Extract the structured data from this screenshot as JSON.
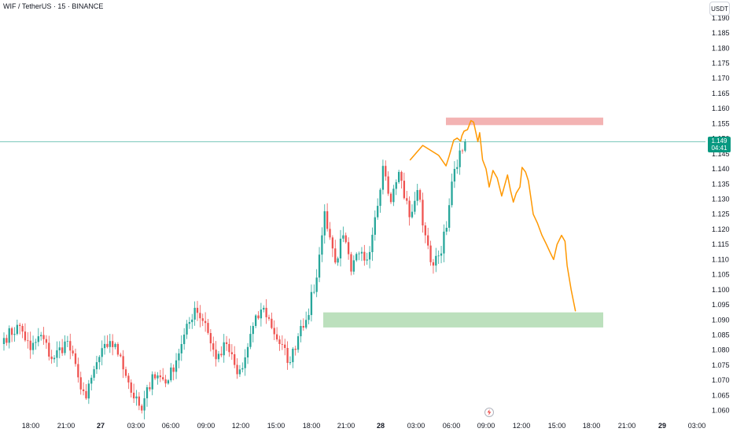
{
  "legend": {
    "symbol": "WIF / TetherUS · 15 · BINANCE"
  },
  "currency_button": {
    "label": "USDT"
  },
  "price_tag": {
    "price": "1.149",
    "countdown": "04:41"
  },
  "colors": {
    "up": "#26a69a",
    "down": "#ef5350",
    "resistance_zone": "#ef9a9a",
    "support_zone": "#a5d6a7",
    "projection": "#ff9800",
    "price_line": "#089981"
  },
  "icons": {
    "replay": "lightning-icon"
  },
  "chart_data": {
    "type": "candlestick",
    "title": "",
    "xlabel": "",
    "ylabel": "",
    "interval": "15",
    "ylim": [
      1.058,
      1.193
    ],
    "y_ticks": [
      "1.060",
      "1.065",
      "1.070",
      "1.075",
      "1.080",
      "1.085",
      "1.090",
      "1.095",
      "1.100",
      "1.105",
      "1.110",
      "1.115",
      "1.120",
      "1.125",
      "1.130",
      "1.135",
      "1.140",
      "1.145",
      "1.150",
      "1.155",
      "1.160",
      "1.165",
      "1.170",
      "1.175",
      "1.180",
      "1.185",
      "1.190"
    ],
    "x_ticks": [
      {
        "label": "18:00",
        "day": false
      },
      {
        "label": "21:00",
        "day": false
      },
      {
        "label": "27",
        "day": true
      },
      {
        "label": "03:00",
        "day": false
      },
      {
        "label": "06:00",
        "day": false
      },
      {
        "label": "09:00",
        "day": false
      },
      {
        "label": "12:00",
        "day": false
      },
      {
        "label": "15:00",
        "day": false
      },
      {
        "label": "18:00",
        "day": false
      },
      {
        "label": "21:00",
        "day": false
      },
      {
        "label": "28",
        "day": true
      },
      {
        "label": "03:00",
        "day": false
      },
      {
        "label": "06:00",
        "day": false
      },
      {
        "label": "09:00",
        "day": false
      },
      {
        "label": "12:00",
        "day": false
      },
      {
        "label": "15:00",
        "day": false
      },
      {
        "label": "18:00",
        "day": false
      },
      {
        "label": "21:00",
        "day": false
      },
      {
        "label": "29",
        "day": true
      },
      {
        "label": "03:00",
        "day": false
      }
    ],
    "candle_count": 150,
    "key_closes": [
      [
        0,
        1.084
      ],
      [
        6,
        1.088
      ],
      [
        10,
        1.08
      ],
      [
        14,
        1.085
      ],
      [
        18,
        1.077
      ],
      [
        24,
        1.083
      ],
      [
        28,
        1.071
      ],
      [
        31,
        1.064
      ],
      [
        35,
        1.076
      ],
      [
        40,
        1.083
      ],
      [
        44,
        1.078
      ],
      [
        49,
        1.064
      ],
      [
        52,
        1.06
      ],
      [
        56,
        1.072
      ],
      [
        62,
        1.07
      ],
      [
        67,
        1.082
      ],
      [
        72,
        1.094
      ],
      [
        76,
        1.089
      ],
      [
        80,
        1.077
      ],
      [
        84,
        1.082
      ],
      [
        88,
        1.072
      ],
      [
        90,
        1.074
      ],
      [
        94,
        1.088
      ],
      [
        98,
        1.094
      ],
      [
        104,
        1.082
      ],
      [
        108,
        1.076
      ],
      [
        112,
        1.088
      ],
      [
        114,
        1.09
      ],
      [
        118,
        1.104
      ],
      [
        120,
        1.118
      ],
      [
        121,
        1.126
      ],
      [
        125,
        1.109
      ],
      [
        128,
        1.118
      ],
      [
        131,
        1.106
      ],
      [
        134,
        1.112
      ],
      [
        137,
        1.11
      ],
      [
        140,
        1.124
      ],
      [
        143,
        1.141
      ],
      [
        146,
        1.129
      ],
      [
        149,
        1.139
      ],
      [
        153,
        1.124
      ],
      [
        156,
        1.133
      ],
      [
        159,
        1.118
      ],
      [
        162,
        1.108
      ],
      [
        165,
        1.112
      ],
      [
        168,
        1.128
      ],
      [
        170,
        1.14
      ],
      [
        173,
        1.146
      ],
      [
        174,
        1.149
      ]
    ],
    "last_price": 1.149,
    "zones": [
      {
        "name": "resistance",
        "y_low": 1.1545,
        "y_high": 1.157
      },
      {
        "name": "support",
        "y_low": 1.0875,
        "y_high": 1.0925
      }
    ],
    "projection_path": [
      [
        153.3,
        1.143
      ],
      [
        158.0,
        1.1478
      ],
      [
        164.0,
        1.1445
      ],
      [
        166.8,
        1.141
      ],
      [
        167.9,
        1.144
      ],
      [
        169.7,
        1.1495
      ],
      [
        171.0,
        1.1502
      ],
      [
        172.3,
        1.1492
      ],
      [
        172.8,
        1.151
      ],
      [
        173.6,
        1.1525
      ],
      [
        174.9,
        1.153
      ],
      [
        176.2,
        1.156
      ],
      [
        177.2,
        1.1555
      ],
      [
        178.8,
        1.149
      ],
      [
        179.5,
        1.152
      ],
      [
        180.6,
        1.143
      ],
      [
        181.9,
        1.14
      ],
      [
        183.1,
        1.134
      ],
      [
        184.5,
        1.1395
      ],
      [
        186.1,
        1.137
      ],
      [
        187.8,
        1.131
      ],
      [
        190.0,
        1.138
      ],
      [
        191.1,
        1.133
      ],
      [
        192.2,
        1.129
      ],
      [
        193.3,
        1.132
      ],
      [
        194.7,
        1.134
      ],
      [
        195.5,
        1.1405
      ],
      [
        196.8,
        1.139
      ],
      [
        197.9,
        1.136
      ],
      [
        199.7,
        1.125
      ],
      [
        201.3,
        1.122
      ],
      [
        203.0,
        1.118
      ],
      [
        204.7,
        1.115
      ],
      [
        206.0,
        1.1125
      ],
      [
        207.4,
        1.11
      ],
      [
        208.7,
        1.115
      ],
      [
        210.4,
        1.118
      ],
      [
        211.7,
        1.116
      ],
      [
        212.5,
        1.108
      ],
      [
        214.0,
        1.1
      ],
      [
        215.6,
        1.093
      ]
    ]
  }
}
